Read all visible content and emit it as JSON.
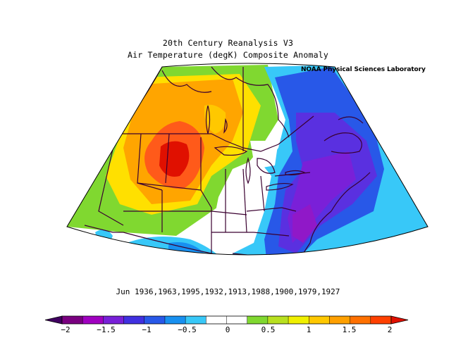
{
  "title": {
    "line1": "20th Century Reanalysis V3",
    "line2": "Air Temperature (degK) Composite Anomaly"
  },
  "credit": "NOAA Physical Sciences Laboratory",
  "composite_years": "Jun 1936,1963,1995,1932,1913,1988,1900,1979,1927",
  "colorbar": {
    "labels": [
      "−2",
      "−1.5",
      "−1",
      "−0.5",
      "0",
      "0.5",
      "1",
      "1.5",
      "2"
    ],
    "colors": [
      "#400060",
      "#7a0080",
      "#a000c0",
      "#7820d8",
      "#4030e0",
      "#2858e8",
      "#1890f0",
      "#38c8f8",
      "#ffffff",
      "#ffffff",
      "#80d830",
      "#b8e020",
      "#f0f000",
      "#ffc800",
      "#ffa000",
      "#ff7000",
      "#ff4000",
      "#e01000"
    ],
    "min": -2,
    "max": 2
  },
  "map": {
    "region": "North America (central and eastern)",
    "variable": "Air Temperature anomaly (degK)",
    "max_warm_region": "northern Great Plains",
    "max_cold_region": "US East Coast / mid-Atlantic"
  }
}
